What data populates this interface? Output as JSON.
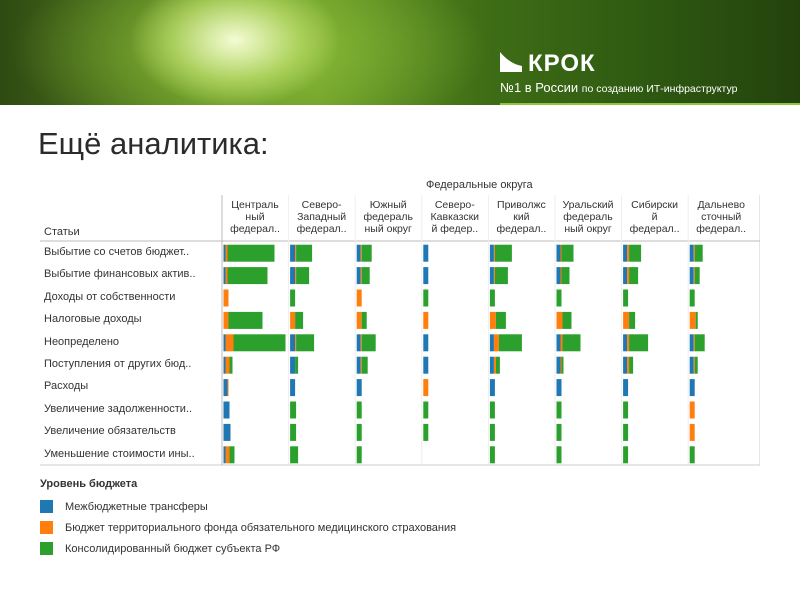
{
  "slide": {
    "title": "Ещё аналитика:",
    "logo": {
      "name": "КРОК",
      "tagline_bold": "№1 в России",
      "tagline_rest": "по созданию ИТ-инфраструктур"
    }
  },
  "colors": {
    "Межбюджетные трансферы": "#1f77b4",
    "Бюджет территориального фонда обязательного медицинского страхования": "#ff7f0e",
    "Консолидированный бюджет субъекта РФ": "#2ca02c"
  },
  "chart_data": {
    "type": "bar",
    "orientation": "horizontal-stacked-small-multiples",
    "column_group_title": "Федеральные округа",
    "row_header": "Статьи",
    "categories": [
      "Выбытие со счетов бюджет..",
      "Выбытие финансовых актив..",
      "Доходы от собственности",
      "Налоговые доходы",
      "Неопределено",
      "Поступления от других бюд..",
      "Расходы",
      "Увеличение задолженности..",
      "Увеличение обязательств",
      "Уменьшение стоимости ины.."
    ],
    "panels": [
      {
        "label": [
          "Централь",
          "ный",
          "федерал.."
        ],
        "values": [
          [
            2,
            2,
            47
          ],
          [
            2,
            2,
            40
          ],
          [
            0,
            5,
            0
          ],
          [
            0,
            5,
            34
          ],
          [
            2,
            8,
            52
          ],
          [
            2,
            4,
            3
          ],
          [
            4,
            1,
            0
          ],
          [
            6,
            0,
            0
          ],
          [
            7,
            0,
            0
          ],
          [
            2,
            4,
            5
          ]
        ]
      },
      {
        "label": [
          "Северо-",
          "Западный",
          "федерал.."
        ],
        "values": [
          [
            5,
            1,
            16
          ],
          [
            5,
            1,
            13
          ],
          [
            0,
            0,
            5
          ],
          [
            0,
            5,
            8
          ],
          [
            5,
            1,
            18
          ],
          [
            5,
            0,
            3
          ],
          [
            5,
            0,
            0
          ],
          [
            0,
            0,
            6
          ],
          [
            0,
            0,
            6
          ],
          [
            0,
            0,
            8
          ]
        ]
      },
      {
        "label": [
          "Южный",
          "федераль",
          "ный округ"
        ],
        "values": [
          [
            4,
            1,
            10
          ],
          [
            4,
            1,
            8
          ],
          [
            0,
            5,
            0
          ],
          [
            0,
            5,
            5
          ],
          [
            4,
            1,
            14
          ],
          [
            4,
            1,
            6
          ],
          [
            5,
            0,
            0
          ],
          [
            0,
            0,
            5
          ],
          [
            0,
            0,
            5
          ],
          [
            0,
            0,
            5
          ]
        ]
      },
      {
        "label": [
          "Северо-",
          "Кавказски",
          "й федер.."
        ],
        "values": [
          [
            5,
            0,
            0
          ],
          [
            5,
            0,
            0
          ],
          [
            0,
            0,
            5
          ],
          [
            0,
            5,
            0
          ],
          [
            5,
            0,
            0
          ],
          [
            5,
            0,
            0
          ],
          [
            0,
            5,
            0
          ],
          [
            0,
            0,
            5
          ],
          [
            0,
            0,
            5
          ],
          [
            0,
            0,
            0
          ]
        ]
      },
      {
        "label": [
          "Приволжс",
          "кий",
          "федерал.."
        ],
        "values": [
          [
            4,
            1,
            17
          ],
          [
            4,
            1,
            13
          ],
          [
            0,
            0,
            5
          ],
          [
            0,
            6,
            10
          ],
          [
            4,
            5,
            23
          ],
          [
            4,
            2,
            4
          ],
          [
            5,
            0,
            0
          ],
          [
            0,
            0,
            5
          ],
          [
            0,
            0,
            5
          ],
          [
            0,
            0,
            5
          ]
        ]
      },
      {
        "label": [
          "Уральский",
          "федераль",
          "ный округ"
        ],
        "values": [
          [
            4,
            1,
            12
          ],
          [
            4,
            1,
            8
          ],
          [
            0,
            0,
            5
          ],
          [
            0,
            6,
            9
          ],
          [
            4,
            2,
            18
          ],
          [
            4,
            1,
            2
          ],
          [
            5,
            0,
            0
          ],
          [
            0,
            0,
            5
          ],
          [
            0,
            0,
            5
          ],
          [
            0,
            0,
            5
          ]
        ]
      },
      {
        "label": [
          "Сибирски",
          "й",
          "федерал.."
        ],
        "values": [
          [
            4,
            2,
            12
          ],
          [
            4,
            2,
            9
          ],
          [
            0,
            0,
            5
          ],
          [
            0,
            6,
            6
          ],
          [
            4,
            2,
            19
          ],
          [
            4,
            2,
            4
          ],
          [
            5,
            0,
            0
          ],
          [
            0,
            0,
            5
          ],
          [
            0,
            0,
            5
          ],
          [
            0,
            0,
            5
          ]
        ]
      },
      {
        "label": [
          "Дальнево",
          "сточный",
          "федерал.."
        ],
        "values": [
          [
            4,
            1,
            8
          ],
          [
            4,
            1,
            5
          ],
          [
            0,
            0,
            5
          ],
          [
            0,
            6,
            2
          ],
          [
            4,
            1,
            10
          ],
          [
            4,
            1,
            3
          ],
          [
            5,
            0,
            0
          ],
          [
            0,
            5,
            0
          ],
          [
            0,
            5,
            0
          ],
          [
            0,
            0,
            5
          ]
        ]
      }
    ],
    "series": [
      {
        "name": "Межбюджетные трансферы",
        "color": "#1f77b4"
      },
      {
        "name": "Бюджет территориального фонда обязательного медицинского страхования",
        "color": "#ff7f0e"
      },
      {
        "name": "Консолидированный бюджет субъекта РФ",
        "color": "#2ca02c"
      }
    ],
    "legend": {
      "title": "Уровень бюджета",
      "placement": "bottom-left"
    }
  }
}
